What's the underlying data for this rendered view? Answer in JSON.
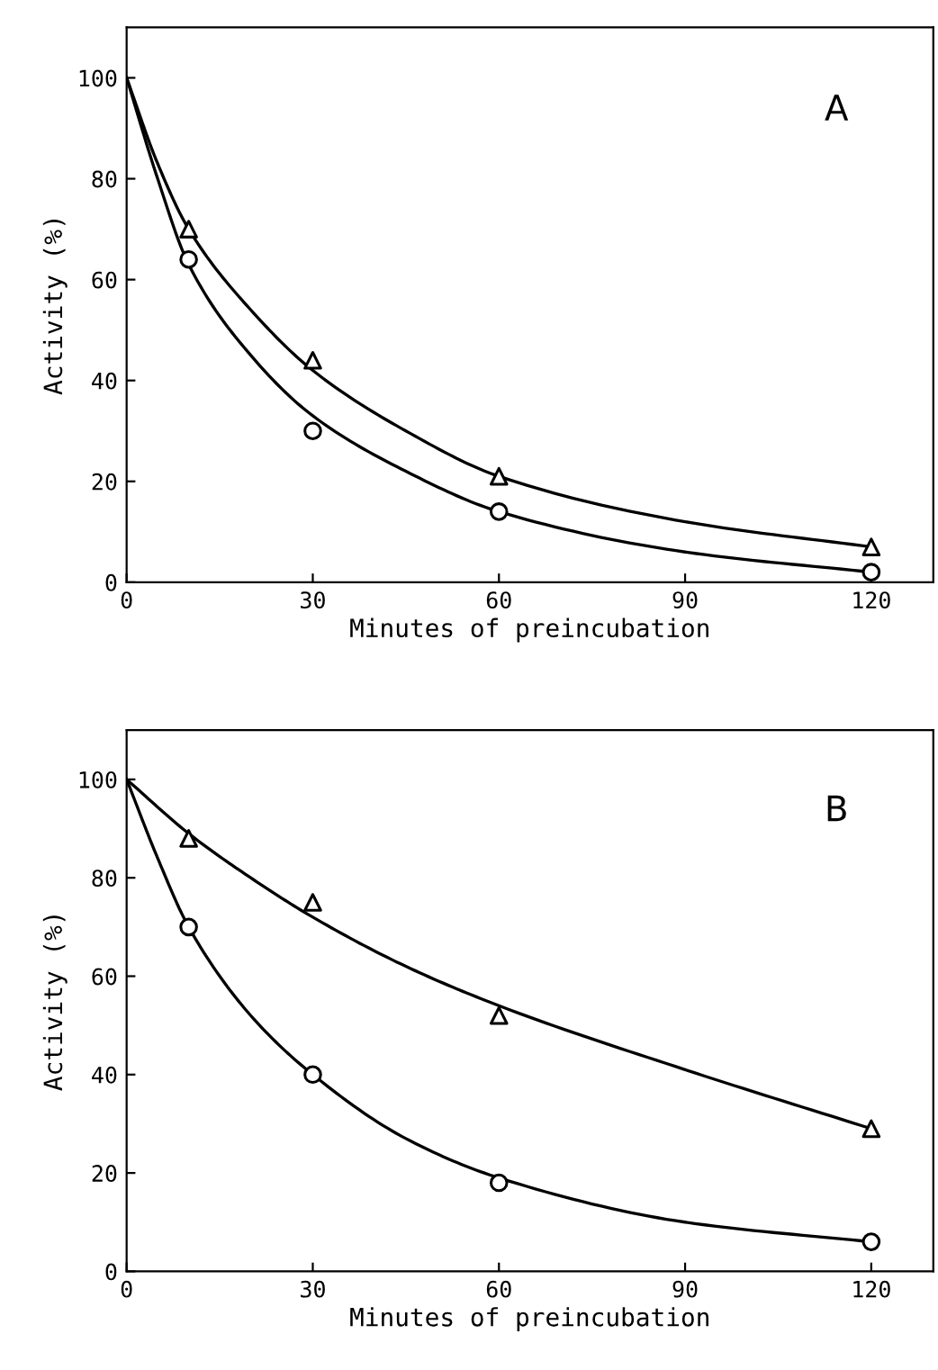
{
  "chart_data": [
    {
      "type": "line",
      "xlabel": "Minutes of preincubation",
      "ylabel": "Activity (%)",
      "annotations": [
        "A"
      ],
      "xlim": [
        0,
        130
      ],
      "ylim": [
        0,
        110
      ],
      "xticks": [
        0,
        30,
        60,
        90,
        120
      ],
      "yticks": [
        0,
        20,
        40,
        60,
        80,
        100
      ],
      "grid": false,
      "legend": false,
      "series": [
        {
          "color": "#000000",
          "marker": "none",
          "x": [
            0,
            5,
            10,
            20,
            30,
            45,
            60,
            90,
            120
          ],
          "values": [
            100,
            83,
            70,
            54,
            42,
            30,
            21,
            12,
            7
          ]
        },
        {
          "color": "#000000",
          "marker": "none",
          "x": [
            0,
            5,
            10,
            20,
            30,
            45,
            60,
            90,
            120
          ],
          "values": [
            100,
            80,
            63,
            45,
            33,
            22,
            14,
            6,
            2
          ]
        },
        {
          "type": "scatter",
          "color": "#000000",
          "marker": "triangle",
          "x": [
            10,
            30,
            60,
            120
          ],
          "values": [
            70,
            44,
            21,
            7
          ]
        },
        {
          "type": "scatter",
          "color": "#000000",
          "marker": "circle",
          "x": [
            10,
            30,
            60,
            120
          ],
          "values": [
            64,
            30,
            14,
            2
          ]
        }
      ]
    },
    {
      "type": "line",
      "xlabel": "Minutes of preincubation",
      "ylabel": "Activity (%)",
      "annotations": [
        "B"
      ],
      "xlim": [
        0,
        130
      ],
      "ylim": [
        0,
        110
      ],
      "xticks": [
        0,
        30,
        60,
        90,
        120
      ],
      "yticks": [
        0,
        20,
        40,
        60,
        80,
        100
      ],
      "grid": false,
      "legend": false,
      "series": [
        {
          "color": "#000000",
          "marker": "none",
          "x": [
            0,
            10,
            20,
            30,
            45,
            60,
            90,
            120
          ],
          "values": [
            100,
            89,
            80,
            72,
            62,
            54,
            41,
            29
          ]
        },
        {
          "color": "#000000",
          "marker": "none",
          "x": [
            0,
            5,
            10,
            20,
            30,
            45,
            60,
            90,
            120
          ],
          "values": [
            100,
            84,
            70,
            52,
            40,
            27,
            19,
            10,
            6
          ]
        },
        {
          "type": "scatter",
          "color": "#000000",
          "marker": "triangle",
          "x": [
            10,
            30,
            60,
            120
          ],
          "values": [
            88,
            75,
            52,
            29
          ]
        },
        {
          "type": "scatter",
          "color": "#000000",
          "marker": "circle",
          "x": [
            10,
            30,
            60,
            120
          ],
          "values": [
            70,
            40,
            18,
            6
          ]
        }
      ]
    }
  ]
}
